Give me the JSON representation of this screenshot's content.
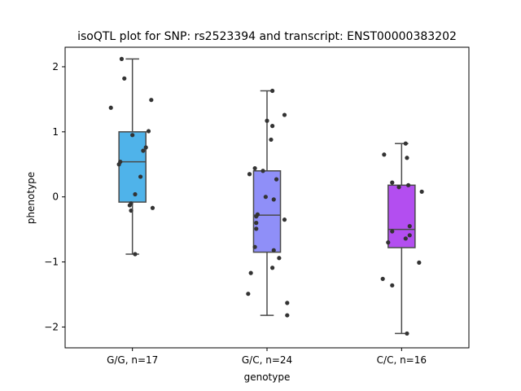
{
  "chart_data": {
    "type": "box",
    "title": "isoQTL plot for SNP: rs2523394 and transcript: ENST00000383202",
    "xlabel": "genotype",
    "ylabel": "phenotype",
    "ylim": [
      -2.32,
      2.3
    ],
    "yticks": [
      -2,
      -1,
      0,
      1,
      2
    ],
    "yticklabels": [
      "−2",
      "−1",
      "0",
      "1",
      "2"
    ],
    "categories": [
      "G/G, n=17",
      "G/C, n=24",
      "C/C, n=16"
    ],
    "colors": [
      "#4fb3ea",
      "#8f8ff8",
      "#b34ef0"
    ],
    "boxes": [
      {
        "whislo": -0.88,
        "q1": -0.08,
        "med": 0.54,
        "q3": 1.0,
        "whishi": 2.12
      },
      {
        "whislo": -1.82,
        "q1": -0.85,
        "med": -0.28,
        "q3": 0.4,
        "whishi": 1.63
      },
      {
        "whislo": -2.1,
        "q1": -0.78,
        "med": -0.5,
        "q3": 0.18,
        "whishi": 0.82
      }
    ],
    "points": [
      [
        {
          "x": -0.08,
          "y": 2.12
        },
        {
          "x": -0.06,
          "y": 1.82
        },
        {
          "x": -0.16,
          "y": 1.37
        },
        {
          "x": 0.14,
          "y": 1.49
        },
        {
          "x": 0.12,
          "y": 1.01
        },
        {
          "x": 0.0,
          "y": 0.95
        },
        {
          "x": 0.1,
          "y": 0.76
        },
        {
          "x": 0.08,
          "y": 0.71
        },
        {
          "x": -0.09,
          "y": 0.54
        },
        {
          "x": -0.1,
          "y": 0.5
        },
        {
          "x": 0.06,
          "y": 0.31
        },
        {
          "x": 0.02,
          "y": 0.04
        },
        {
          "x": -0.01,
          "y": -0.1
        },
        {
          "x": -0.02,
          "y": -0.13
        },
        {
          "x": 0.15,
          "y": -0.17
        },
        {
          "x": -0.01,
          "y": -0.21
        },
        {
          "x": 0.02,
          "y": -0.88
        }
      ],
      [
        {
          "x": 0.04,
          "y": 1.63
        },
        {
          "x": 0.13,
          "y": 1.26
        },
        {
          "x": 0.0,
          "y": 1.17
        },
        {
          "x": 0.04,
          "y": 1.09
        },
        {
          "x": 0.03,
          "y": 0.88
        },
        {
          "x": -0.09,
          "y": 0.44
        },
        {
          "x": -0.03,
          "y": 0.4
        },
        {
          "x": -0.13,
          "y": 0.35
        },
        {
          "x": 0.07,
          "y": 0.27
        },
        {
          "x": -0.01,
          "y": 0.0
        },
        {
          "x": 0.05,
          "y": -0.04
        },
        {
          "x": -0.07,
          "y": -0.27
        },
        {
          "x": -0.08,
          "y": -0.3
        },
        {
          "x": 0.13,
          "y": -0.35
        },
        {
          "x": -0.08,
          "y": -0.4
        },
        {
          "x": -0.08,
          "y": -0.49
        },
        {
          "x": -0.09,
          "y": -0.77
        },
        {
          "x": 0.05,
          "y": -0.82
        },
        {
          "x": 0.09,
          "y": -0.94
        },
        {
          "x": 0.04,
          "y": -1.09
        },
        {
          "x": -0.12,
          "y": -1.17
        },
        {
          "x": -0.14,
          "y": -1.49
        },
        {
          "x": 0.15,
          "y": -1.63
        },
        {
          "x": 0.15,
          "y": -1.82
        }
      ],
      [
        {
          "x": 0.03,
          "y": 0.82
        },
        {
          "x": -0.13,
          "y": 0.65
        },
        {
          "x": 0.04,
          "y": 0.6
        },
        {
          "x": -0.07,
          "y": 0.22
        },
        {
          "x": 0.05,
          "y": 0.18
        },
        {
          "x": -0.02,
          "y": 0.15
        },
        {
          "x": 0.15,
          "y": 0.08
        },
        {
          "x": 0.06,
          "y": -0.45
        },
        {
          "x": -0.07,
          "y": -0.53
        },
        {
          "x": 0.06,
          "y": -0.59
        },
        {
          "x": 0.03,
          "y": -0.64
        },
        {
          "x": -0.1,
          "y": -0.7
        },
        {
          "x": 0.13,
          "y": -1.01
        },
        {
          "x": -0.14,
          "y": -1.26
        },
        {
          "x": -0.07,
          "y": -1.36
        },
        {
          "x": 0.04,
          "y": -2.1
        }
      ]
    ],
    "grid": false,
    "legend": false
  }
}
